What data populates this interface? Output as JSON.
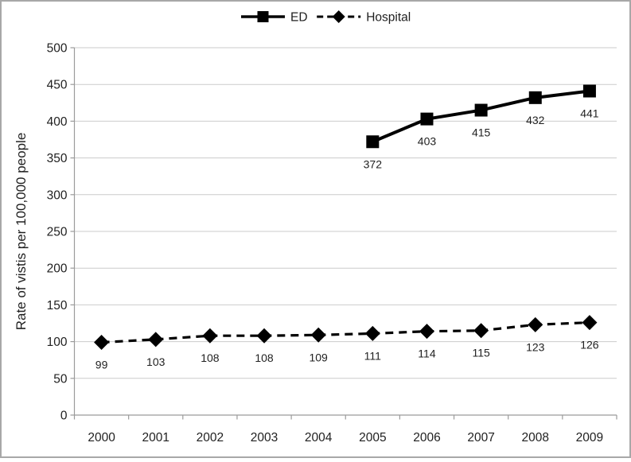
{
  "chart_data": {
    "type": "line",
    "title": "",
    "xlabel": "",
    "ylabel": "Rate of vistis per 100,000 people",
    "categories": [
      "2000",
      "2001",
      "2002",
      "2003",
      "2004",
      "2005",
      "2006",
      "2007",
      "2008",
      "2009"
    ],
    "series": [
      {
        "name": "ED",
        "values": [
          null,
          null,
          null,
          null,
          null,
          372,
          403,
          415,
          432,
          441
        ],
        "line_style": "solid",
        "marker": "square",
        "color": "#000000"
      },
      {
        "name": "Hospital",
        "values": [
          99,
          103,
          108,
          108,
          109,
          111,
          114,
          115,
          123,
          126
        ],
        "line_style": "dashed",
        "marker": "diamond",
        "color": "#000000"
      }
    ],
    "ylim": [
      0,
      500
    ],
    "ytick_step": 50,
    "yticks": [
      0,
      50,
      100,
      150,
      200,
      250,
      300,
      350,
      400,
      450,
      500
    ],
    "grid": true,
    "data_labels": true,
    "legend_position": "top-center",
    "colors": {
      "background": "#ffffff",
      "outer_border": "#a8a8a8",
      "gridline": "#cbcbcb",
      "axis": "#9b9b9b",
      "text": "#1f1f1f",
      "series": "#000000"
    }
  }
}
